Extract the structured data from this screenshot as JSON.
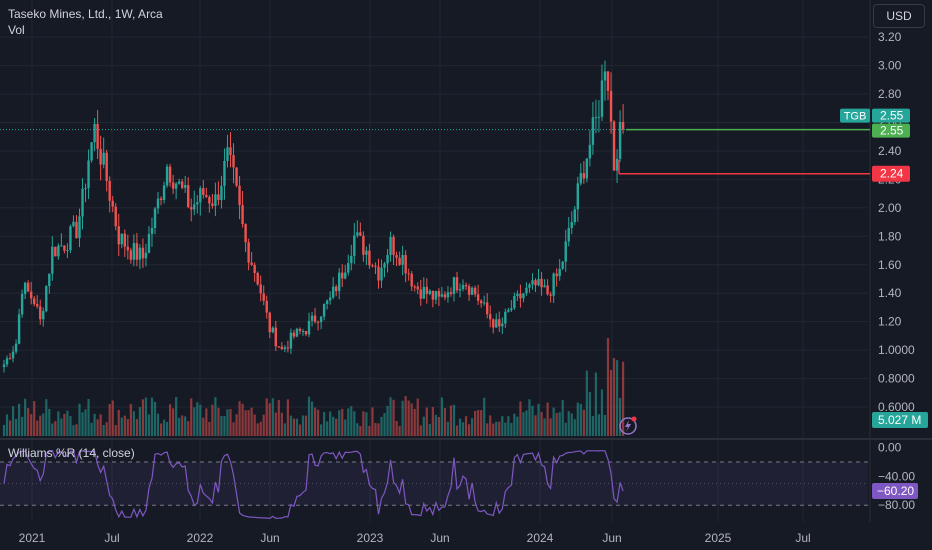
{
  "header": {
    "title": "Taseko Mines, Ltd., 1W, Arca",
    "volume_label": "Vol"
  },
  "currency_button": "USD",
  "indicator_label": "Williams %R (14, close)",
  "colors": {
    "background": "#161a25",
    "up": "#26a69a",
    "down": "#ef5350",
    "wr_line": "#7e57c2",
    "grid": "#232732",
    "text": "#d1d4dc",
    "axis_text": "#b2b5be"
  },
  "chart_data": [
    {
      "type": "candlestick",
      "x_axis_ticks": [
        "2021",
        "Jul",
        "2022",
        "Jun",
        "2023",
        "Jun",
        "2024",
        "Jun",
        "2025",
        "Jul"
      ],
      "y_axis_ticks": [
        "3.20",
        "3.00",
        "2.80",
        "2.60",
        "2.40",
        "2.20",
        "2.00",
        "1.80",
        "1.60",
        "1.40",
        "1.20",
        "1.0000",
        "0.8000",
        "0.6000"
      ],
      "y_axis_ticks_values": [
        3.2,
        3.0,
        2.8,
        2.6,
        2.4,
        2.2,
        2.0,
        1.8,
        1.6,
        1.4,
        1.2,
        1.0,
        0.8,
        0.6
      ],
      "ylim": [
        0.55,
        3.25
      ],
      "grid": true,
      "symbol": "TGB",
      "last_price": 2.55,
      "last_price_label": "2.55",
      "last_price_line_label": "2.55",
      "low_line": 2.24,
      "low_line_label": "2.24",
      "volume_last_label": "5.027 M",
      "anchors": [
        {
          "t": 0,
          "p": 0.9
        },
        {
          "t": 4,
          "p": 1.05
        },
        {
          "t": 6,
          "p": 1.45
        },
        {
          "t": 10,
          "p": 1.35
        },
        {
          "t": 12,
          "p": 1.2
        },
        {
          "t": 16,
          "p": 1.7
        },
        {
          "t": 20,
          "p": 1.75
        },
        {
          "t": 24,
          "p": 1.85
        },
        {
          "t": 26,
          "p": 2.05
        },
        {
          "t": 28,
          "p": 2.35
        },
        {
          "t": 30,
          "p": 2.55
        },
        {
          "t": 34,
          "p": 2.2
        },
        {
          "t": 38,
          "p": 1.8
        },
        {
          "t": 42,
          "p": 1.7
        },
        {
          "t": 46,
          "p": 1.65
        },
        {
          "t": 50,
          "p": 1.95
        },
        {
          "t": 54,
          "p": 2.3
        },
        {
          "t": 58,
          "p": 2.15
        },
        {
          "t": 62,
          "p": 2.0
        },
        {
          "t": 66,
          "p": 2.1
        },
        {
          "t": 70,
          "p": 2.05
        },
        {
          "t": 74,
          "p": 2.35
        },
        {
          "t": 76,
          "p": 2.2
        },
        {
          "t": 80,
          "p": 1.75
        },
        {
          "t": 84,
          "p": 1.5
        },
        {
          "t": 88,
          "p": 1.15
        },
        {
          "t": 92,
          "p": 1.0
        },
        {
          "t": 96,
          "p": 1.1
        },
        {
          "t": 100,
          "p": 1.15
        },
        {
          "t": 104,
          "p": 1.25
        },
        {
          "t": 108,
          "p": 1.35
        },
        {
          "t": 112,
          "p": 1.55
        },
        {
          "t": 116,
          "p": 1.8
        },
        {
          "t": 120,
          "p": 1.7
        },
        {
          "t": 124,
          "p": 1.55
        },
        {
          "t": 128,
          "p": 1.75
        },
        {
          "t": 132,
          "p": 1.65
        },
        {
          "t": 136,
          "p": 1.45
        },
        {
          "t": 140,
          "p": 1.4
        },
        {
          "t": 144,
          "p": 1.35
        },
        {
          "t": 148,
          "p": 1.45
        },
        {
          "t": 152,
          "p": 1.5
        },
        {
          "t": 156,
          "p": 1.4
        },
        {
          "t": 160,
          "p": 1.25
        },
        {
          "t": 164,
          "p": 1.15
        },
        {
          "t": 168,
          "p": 1.3
        },
        {
          "t": 172,
          "p": 1.4
        },
        {
          "t": 176,
          "p": 1.45
        },
        {
          "t": 180,
          "p": 1.4
        },
        {
          "t": 184,
          "p": 1.55
        },
        {
          "t": 188,
          "p": 1.9
        },
        {
          "t": 192,
          "p": 2.3
        },
        {
          "t": 194,
          "p": 2.45
        },
        {
          "t": 196,
          "p": 2.6
        },
        {
          "t": 198,
          "p": 2.85
        },
        {
          "t": 199,
          "p": 3.05
        },
        {
          "t": 200,
          "p": 2.9
        },
        {
          "t": 201,
          "p": 2.6
        },
        {
          "t": 202,
          "p": 2.3
        },
        {
          "t": 203,
          "p": 2.45
        },
        {
          "t": 204,
          "p": 2.5
        },
        {
          "t": 205,
          "p": 2.55
        }
      ],
      "total_bars": 206,
      "visible_bars": 300
    },
    {
      "type": "line",
      "name": "Williams %R (14, close)",
      "y_axis_ticks": [
        "0.00",
        "−40.00",
        "−80.00"
      ],
      "y_axis_ticks_values": [
        0,
        -40,
        -80
      ],
      "ylim": [
        -95,
        5
      ],
      "bands": [
        -20,
        -80
      ],
      "last_value": -60.2,
      "last_value_label": "−60.20"
    }
  ]
}
